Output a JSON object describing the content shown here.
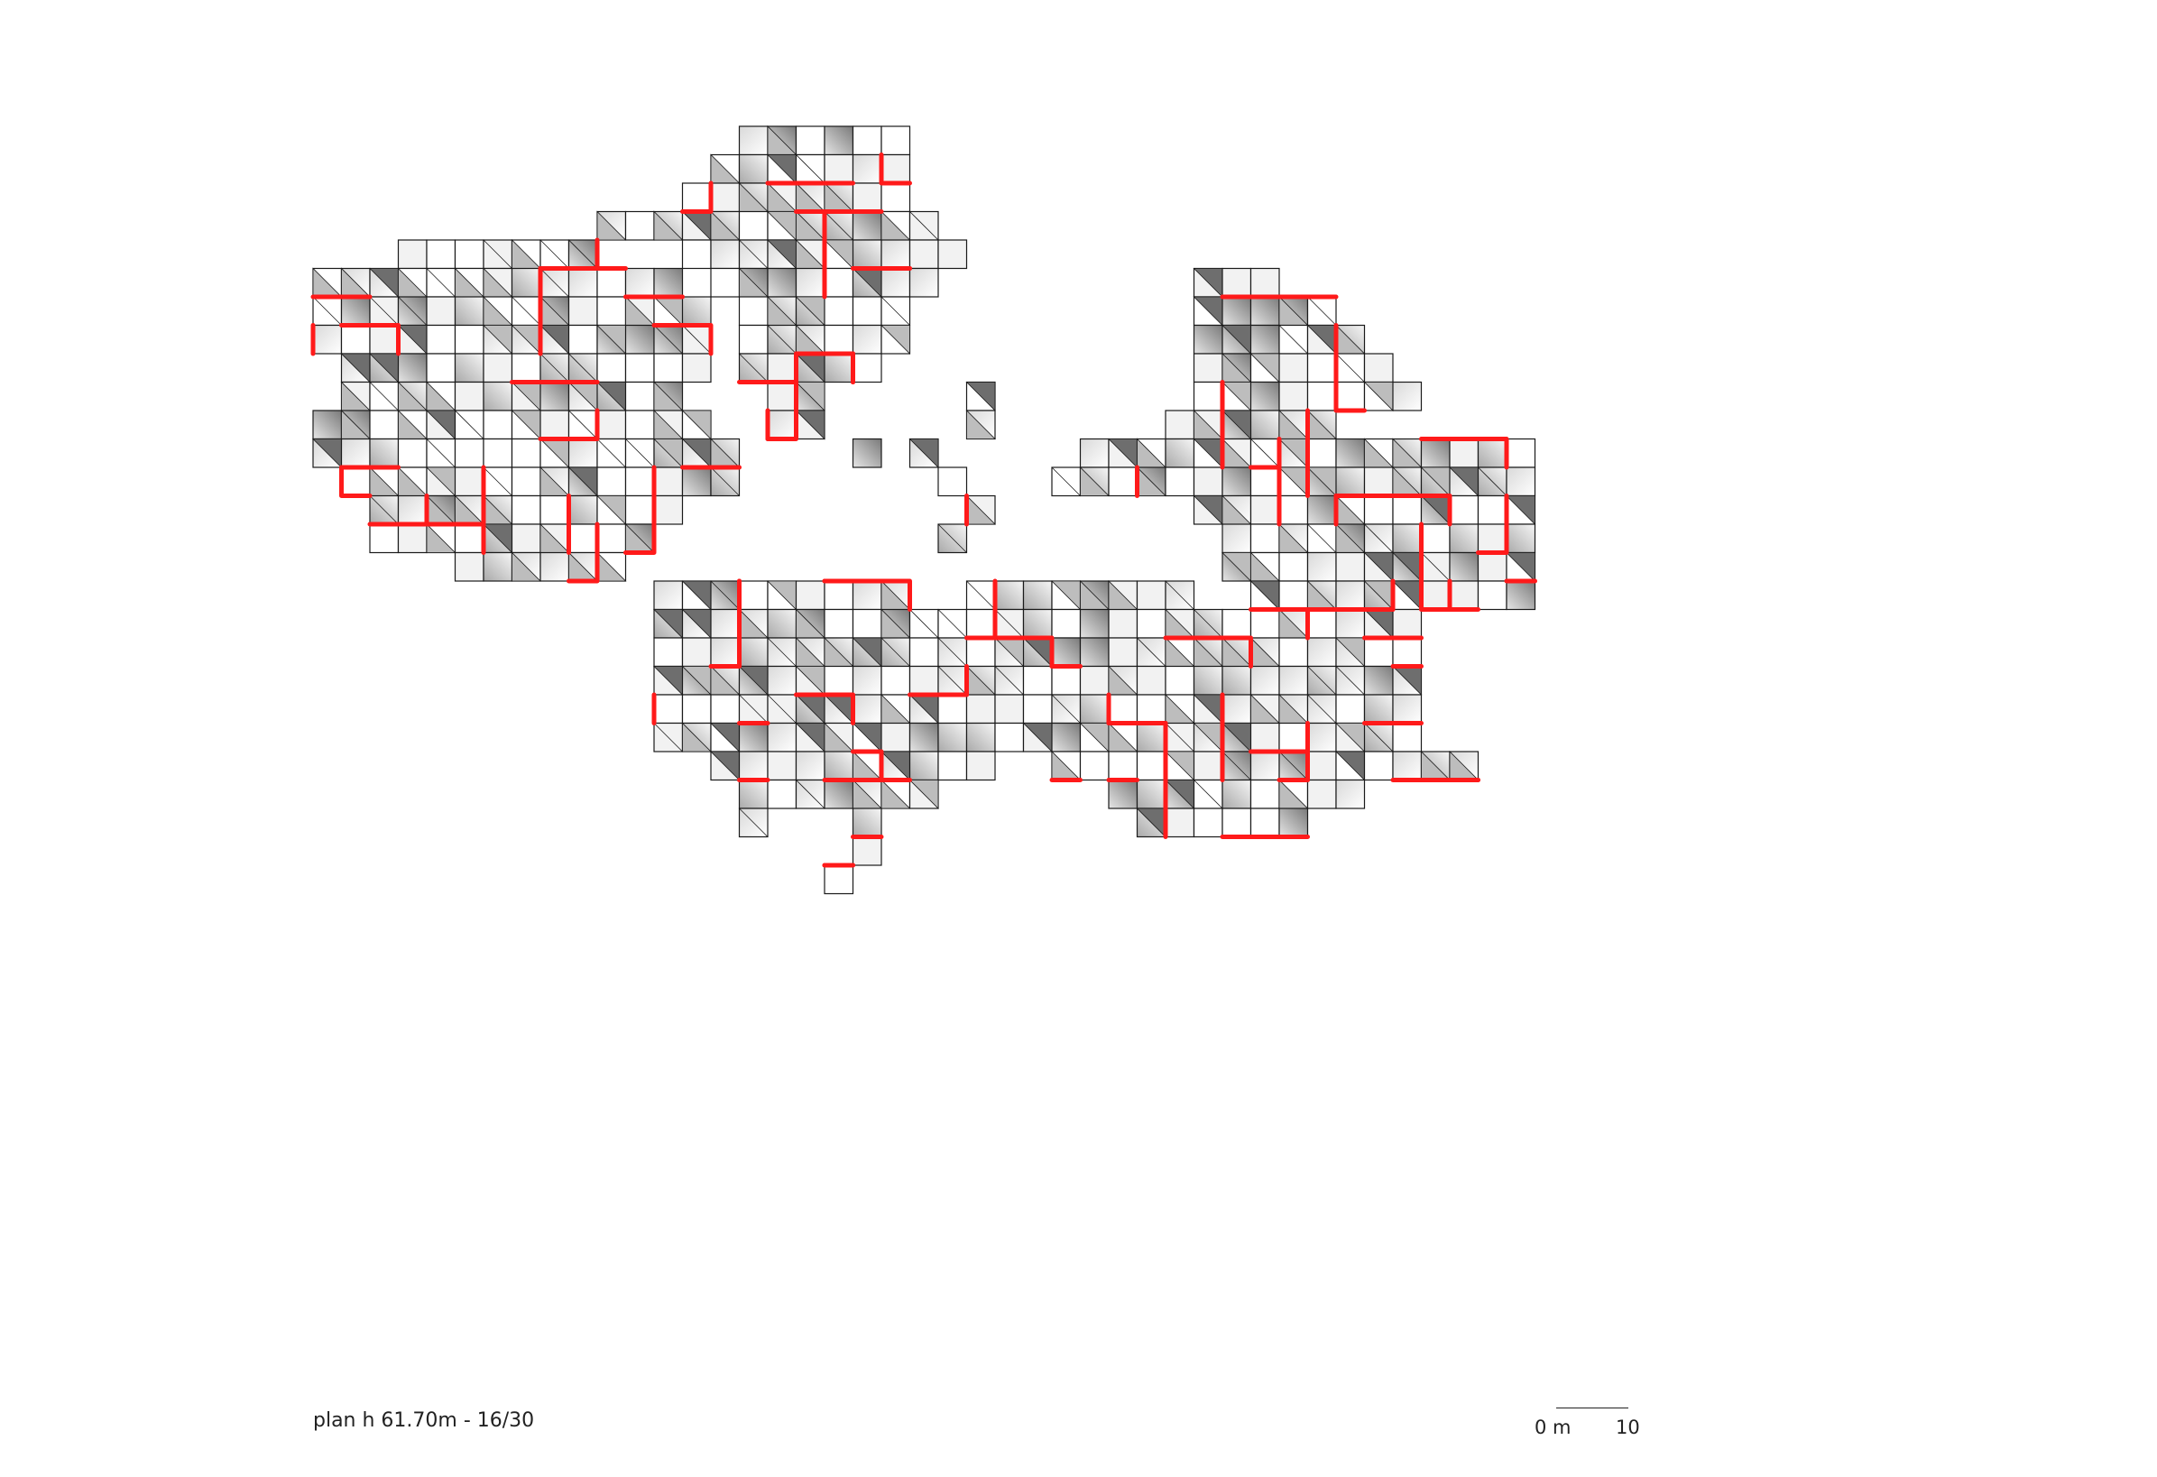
{
  "caption": "plan h 61.70m - 16/30",
  "scale": {
    "zero": "0 m",
    "ten": "10"
  },
  "colors": {
    "path": "#ff1a1a",
    "outline": "#1a1a1a",
    "shade_dark": "#6e6e6e",
    "shade_light": "#f4f4f4"
  },
  "plan_grid": {
    "columns": 43,
    "rows": 27,
    "cells": [
      "...............######......................",
      "..............#######......................",
      ".............########......................",
      "..........############.....................",
      "...#######...##########.....................",
      "#############.########.........###.........",
      "##############.######..........#####.......",
      "##############.######..........######......",
      ".#############.#####...........#######.....",
      ".############...##.....#.......########....",
      "##############..##.....#......######.......",
      "###############....#.#.....################",
      ".##############.......#...#################",
      "..###########..........#.......############",
      "..##########..........#.........###########",
      ".....######.....................###########",
      "............#########..########..##########",
      "............###########################....",
      "............###########################....",
      "............###########################....",
      "............###########################....",
      "............###########################....",
      "..............##########..###############..",
      "...............#######......#########......",
      "...............#...#.........######........",
      "...................#.......................",
      "..................#........................"
    ],
    "red_paths": 96
  }
}
